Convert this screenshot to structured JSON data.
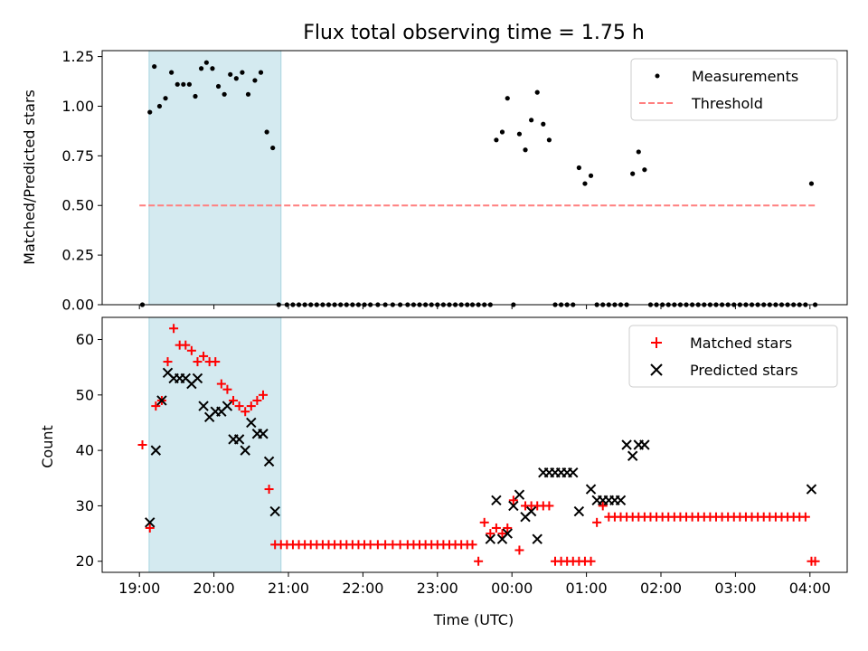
{
  "chart_data": [
    {
      "type": "scatter",
      "title": "Flux total observing time = 1.75 h",
      "xlabel": "",
      "ylabel": "Matched/Predicted stars",
      "xlim": [
        -0.5,
        9.5
      ],
      "ylim": [
        0,
        1.28
      ],
      "yticks": [
        "0.00",
        "0.25",
        "0.50",
        "0.75",
        "1.00",
        "1.25"
      ],
      "yticks_values": [
        0,
        0.25,
        0.5,
        0.75,
        1.0,
        1.25
      ],
      "xticks_values": [
        0,
        1,
        2,
        3,
        4,
        5,
        6,
        7,
        8,
        9
      ],
      "highlight_span": [
        0.13,
        1.9
      ],
      "highlight_color": "#d4eaf0",
      "legend": {
        "position": "top-right",
        "entries": [
          "Measurements",
          "Threshold"
        ]
      },
      "series": [
        {
          "name": "Measurements",
          "marker": "dot",
          "color": "#000000",
          "x": [
            0.04,
            0.14,
            0.2,
            0.27,
            0.35,
            0.43,
            0.51,
            0.59,
            0.67,
            0.75,
            0.83,
            0.9,
            0.98,
            1.06,
            1.14,
            1.22,
            1.3,
            1.38,
            1.46,
            1.55,
            1.63,
            1.71,
            1.79,
            1.87,
            1.98,
            2.06,
            2.14,
            2.22,
            2.3,
            2.38,
            2.46,
            2.54,
            2.62,
            2.7,
            2.78,
            2.86,
            2.94,
            3.02,
            3.1,
            3.2,
            3.3,
            3.4,
            3.5,
            3.6,
            3.68,
            3.76,
            3.84,
            3.92,
            4.0,
            4.08,
            4.16,
            4.24,
            4.32,
            4.4,
            4.47,
            4.55,
            4.63,
            4.71,
            4.79,
            4.87,
            4.94,
            5.02,
            5.1,
            5.18,
            5.26,
            5.34,
            5.42,
            5.5,
            5.58,
            5.66,
            5.74,
            5.82,
            5.9,
            5.98,
            6.06,
            6.14,
            6.22,
            6.3,
            6.38,
            6.46,
            6.54,
            6.62,
            6.7,
            6.78,
            6.86,
            6.94,
            7.02,
            7.1,
            7.18,
            7.26,
            7.34,
            7.42,
            7.5,
            7.58,
            7.66,
            7.74,
            7.82,
            7.9,
            7.98,
            8.06,
            8.14,
            8.22,
            8.3,
            8.38,
            8.46,
            8.54,
            8.62,
            8.7,
            8.78,
            8.86,
            8.94,
            9.02,
            9.07
          ],
          "y": [
            0.0,
            0.97,
            1.2,
            1.0,
            1.04,
            1.17,
            1.11,
            1.11,
            1.11,
            1.05,
            1.19,
            1.22,
            1.19,
            1.1,
            1.06,
            1.16,
            1.14,
            1.17,
            1.06,
            1.13,
            1.17,
            0.87,
            0.79,
            0.0,
            0.0,
            0.0,
            0.0,
            0.0,
            0.0,
            0.0,
            0.0,
            0.0,
            0.0,
            0.0,
            0.0,
            0.0,
            0.0,
            0.0,
            0.0,
            0.0,
            0.0,
            0.0,
            0.0,
            0.0,
            0.0,
            0.0,
            0.0,
            0.0,
            0.0,
            0.0,
            0.0,
            0.0,
            0.0,
            0.0,
            0.0,
            0.0,
            0.0,
            0.0,
            0.83,
            0.87,
            1.04,
            0.0,
            0.86,
            0.78,
            0.93,
            1.07,
            0.91,
            0.83,
            0.0,
            0.0,
            0.0,
            0.0,
            0.69,
            0.61,
            0.65,
            0.0,
            0.0,
            0.0,
            0.0,
            0.0,
            0.0,
            0.66,
            0.77,
            0.68,
            0.0,
            0.0,
            0.0,
            0.0,
            0.0,
            0.0,
            0.0,
            0.0,
            0.0,
            0.0,
            0.0,
            0.0,
            0.0,
            0.0,
            0.0,
            0.0,
            0.0,
            0.0,
            0.0,
            0.0,
            0.0,
            0.0,
            0.0,
            0.0,
            0.0,
            0.0,
            0.0,
            0.61,
            0.0
          ]
        },
        {
          "name": "Threshold",
          "marker": "dashed-line",
          "color": "#ff7f7f",
          "x": [
            0.0,
            9.07
          ],
          "y": [
            0.5,
            0.5
          ]
        }
      ]
    },
    {
      "type": "scatter",
      "title": "",
      "xlabel": "Time (UTC)",
      "ylabel": "Count",
      "xlim": [
        -0.5,
        9.5
      ],
      "ylim": [
        18,
        64
      ],
      "xticks": [
        "19:00",
        "20:00",
        "21:00",
        "22:00",
        "23:00",
        "00:00",
        "01:00",
        "02:00",
        "03:00",
        "04:00"
      ],
      "xticks_values": [
        0,
        1,
        2,
        3,
        4,
        5,
        6,
        7,
        8,
        9
      ],
      "yticks": [
        "20",
        "30",
        "40",
        "50",
        "60"
      ],
      "yticks_values": [
        20,
        30,
        40,
        50,
        60
      ],
      "highlight_span": [
        0.13,
        1.9
      ],
      "highlight_color": "#d4eaf0",
      "legend": {
        "position": "top-right",
        "entries": [
          "Matched stars",
          "Predicted stars"
        ]
      },
      "series": [
        {
          "name": "Matched stars",
          "marker": "plus",
          "color": "#ff0000",
          "x": [
            0.04,
            0.14,
            0.22,
            0.3,
            0.38,
            0.46,
            0.54,
            0.62,
            0.7,
            0.78,
            0.86,
            0.94,
            1.02,
            1.1,
            1.18,
            1.26,
            1.34,
            1.42,
            1.5,
            1.58,
            1.66,
            1.74,
            1.82,
            1.9,
            1.98,
            2.06,
            2.14,
            2.22,
            2.3,
            2.38,
            2.46,
            2.54,
            2.62,
            2.7,
            2.78,
            2.86,
            2.94,
            3.02,
            3.1,
            3.2,
            3.3,
            3.4,
            3.5,
            3.6,
            3.68,
            3.76,
            3.84,
            3.92,
            4.0,
            4.08,
            4.16,
            4.24,
            4.32,
            4.4,
            4.47,
            4.55,
            4.63,
            4.71,
            4.79,
            4.87,
            4.94,
            5.02,
            5.1,
            5.18,
            5.26,
            5.34,
            5.42,
            5.5,
            5.58,
            5.66,
            5.74,
            5.82,
            5.9,
            5.98,
            6.06,
            6.14,
            6.22,
            6.3,
            6.38,
            6.46,
            6.54,
            6.62,
            6.7,
            6.78,
            6.86,
            6.94,
            7.02,
            7.1,
            7.18,
            7.26,
            7.34,
            7.42,
            7.5,
            7.58,
            7.66,
            7.74,
            7.82,
            7.9,
            7.98,
            8.06,
            8.14,
            8.22,
            8.3,
            8.38,
            8.46,
            8.54,
            8.62,
            8.7,
            8.78,
            8.86,
            8.94,
            9.02,
            9.07
          ],
          "y": [
            41,
            26,
            48,
            49,
            56,
            62,
            59,
            59,
            58,
            56,
            57,
            56,
            56,
            52,
            51,
            49,
            48,
            47,
            48,
            49,
            50,
            33,
            23,
            23,
            23,
            23,
            23,
            23,
            23,
            23,
            23,
            23,
            23,
            23,
            23,
            23,
            23,
            23,
            23,
            23,
            23,
            23,
            23,
            23,
            23,
            23,
            23,
            23,
            23,
            23,
            23,
            23,
            23,
            23,
            23,
            20,
            27,
            25,
            26,
            25,
            26,
            31,
            22,
            30,
            30,
            30,
            30,
            30,
            20,
            20,
            20,
            20,
            20,
            20,
            20,
            27,
            30,
            28,
            28,
            28,
            28,
            28,
            28,
            28,
            28,
            28,
            28,
            28,
            28,
            28,
            28,
            28,
            28,
            28,
            28,
            28,
            28,
            28,
            28,
            28,
            28,
            28,
            28,
            28,
            28,
            28,
            28,
            28,
            28,
            28,
            28,
            20,
            20
          ]
        },
        {
          "name": "Predicted stars",
          "marker": "x",
          "color": "#000000",
          "x": [
            0.14,
            0.22,
            0.3,
            0.38,
            0.46,
            0.54,
            0.62,
            0.7,
            0.78,
            0.86,
            0.94,
            1.02,
            1.1,
            1.18,
            1.26,
            1.34,
            1.42,
            1.5,
            1.58,
            1.66,
            1.74,
            1.82,
            4.71,
            4.79,
            4.87,
            4.94,
            5.02,
            5.1,
            5.18,
            5.26,
            5.34,
            5.42,
            5.5,
            5.58,
            5.66,
            5.74,
            5.82,
            5.9,
            6.06,
            6.14,
            6.22,
            6.3,
            6.38,
            6.46,
            6.54,
            6.62,
            6.7,
            6.78,
            9.02
          ],
          "y": [
            27,
            40,
            49,
            54,
            53,
            53,
            53,
            52,
            53,
            48,
            46,
            47,
            47,
            48,
            42,
            42,
            40,
            45,
            43,
            43,
            38,
            29,
            24,
            31,
            24,
            25,
            30,
            32,
            28,
            29,
            24,
            36,
            36,
            36,
            36,
            36,
            36,
            29,
            33,
            31,
            31,
            31,
            31,
            31,
            41,
            39,
            41,
            41,
            33
          ]
        }
      ]
    }
  ]
}
